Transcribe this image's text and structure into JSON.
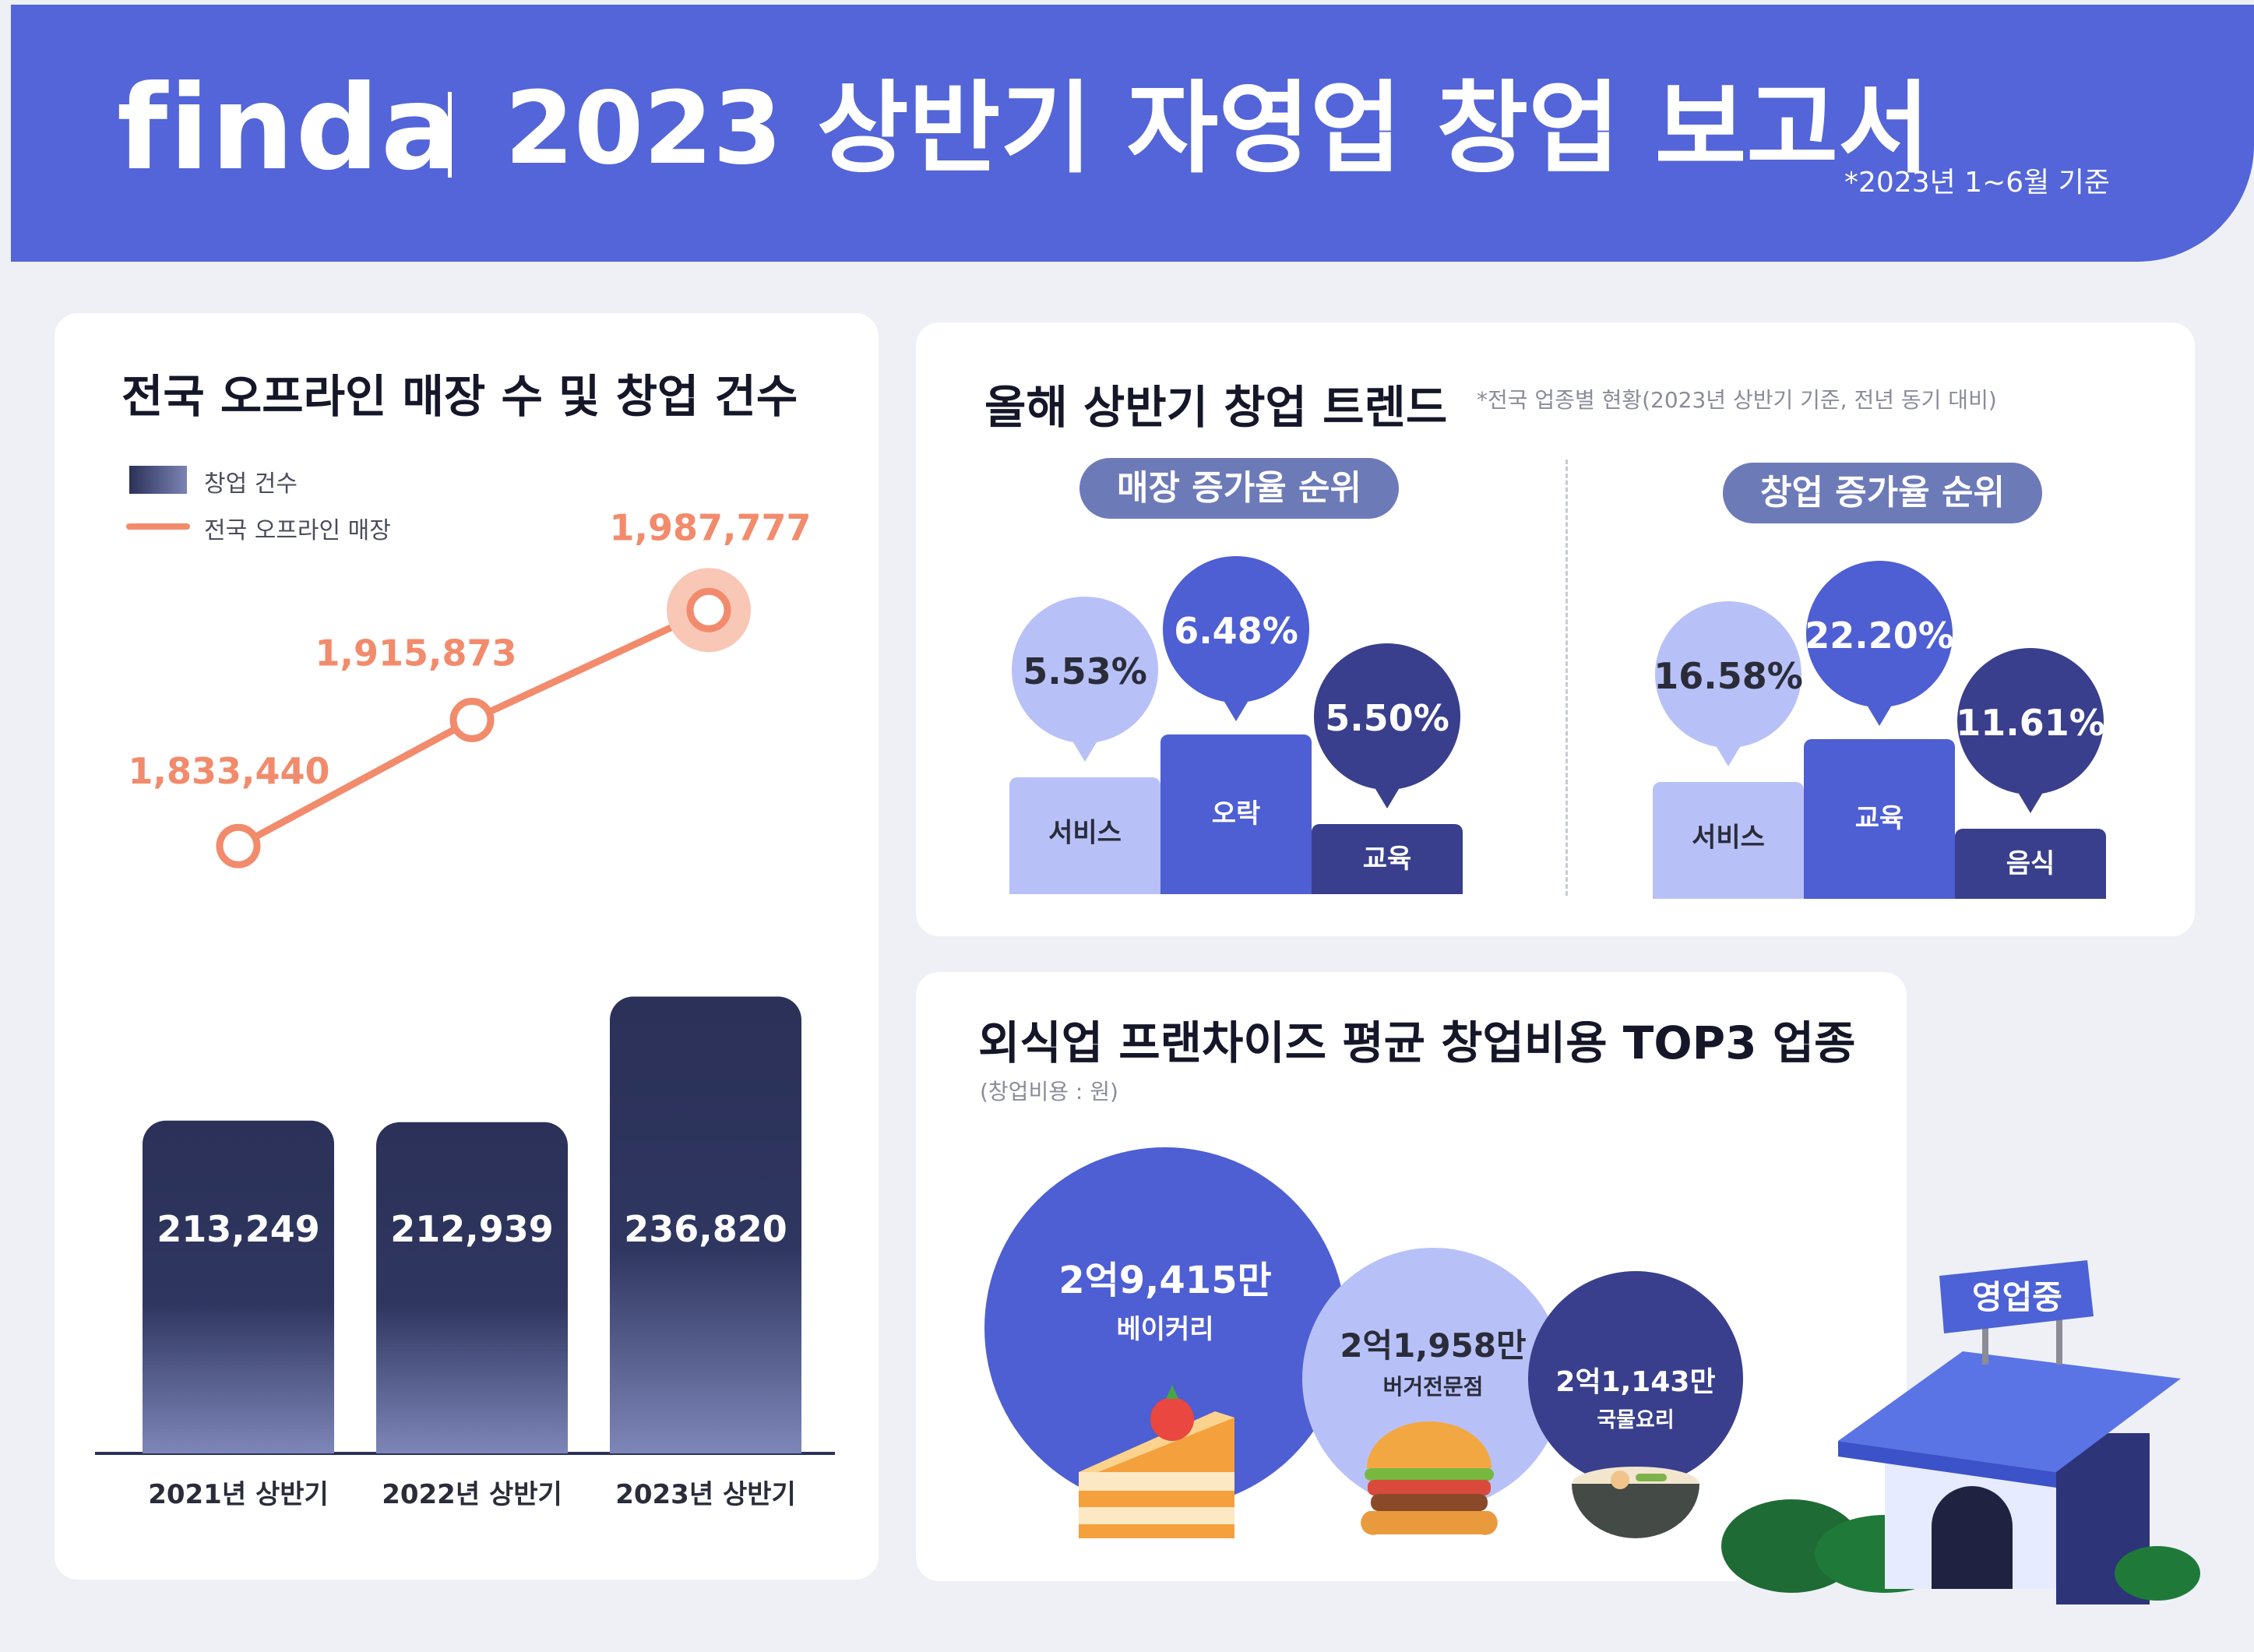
{
  "header": {
    "logo": "finda",
    "title": "2023 상반기 자영업 창업 보고서",
    "note": "*2023년 1~6월 기준"
  },
  "colors": {
    "brand": "#5365d8",
    "navy": "#2b3158",
    "orange": "#f28b6c",
    "light": "#b8c1f7",
    "mid": "#4e5ed3",
    "dark": "#393f8c"
  },
  "section1": {
    "title": "전국 오프라인 매장 수 및 창업 건수",
    "legend": {
      "bar": "창업 건수",
      "line": "전국 오프라인 매장"
    }
  },
  "section2": {
    "title": "올해 상반기 창업 트렌드",
    "note": "*전국 업종별 현황(2023년 상반기 기준, 전년 동기 대비)",
    "store_pill": "매장 증가율 순위",
    "startup_pill": "창업 증가율 순위"
  },
  "section3": {
    "title": "외식업 프랜차이즈 평균 창업비용 TOP3 업종",
    "note": "(창업비용 : 원)",
    "sign": "영업중"
  },
  "chart_data": [
    {
      "type": "bar",
      "title": "전국 오프라인 매장 수 및 창업 건수",
      "categories": [
        "2021년 상반기",
        "2022년 상반기",
        "2023년 상반기"
      ],
      "series": [
        {
          "name": "창업 건수",
          "type": "bar",
          "values": [
            213249,
            212939,
            236820
          ],
          "labels": [
            "213,249",
            "212,939",
            "236,820"
          ]
        },
        {
          "name": "전국 오프라인 매장",
          "type": "line",
          "values": [
            1833440,
            1915873,
            1987777
          ],
          "labels": [
            "1,833,440",
            "1,915,873",
            "1,987,777"
          ]
        }
      ]
    },
    {
      "type": "bar",
      "title": "매장 증가율 순위",
      "categories": [
        "서비스",
        "오락",
        "교육"
      ],
      "values": [
        5.53,
        6.48,
        5.5
      ],
      "labels": [
        "5.53%",
        "6.48%",
        "5.50%"
      ]
    },
    {
      "type": "bar",
      "title": "창업 증가율 순위",
      "categories": [
        "서비스",
        "교육",
        "음식"
      ],
      "values": [
        16.58,
        22.2,
        11.61
      ],
      "labels": [
        "16.58%",
        "22.20%",
        "11.61%"
      ]
    },
    {
      "type": "bubble",
      "title": "외식업 프랜차이즈 평균 창업비용 TOP3 업종",
      "categories": [
        "베이커리",
        "버거전문점",
        "국물요리"
      ],
      "values": [
        294150000,
        219580000,
        211430000
      ],
      "labels": [
        "2억9,415만",
        "2억1,958만",
        "2억1,143만"
      ]
    }
  ]
}
